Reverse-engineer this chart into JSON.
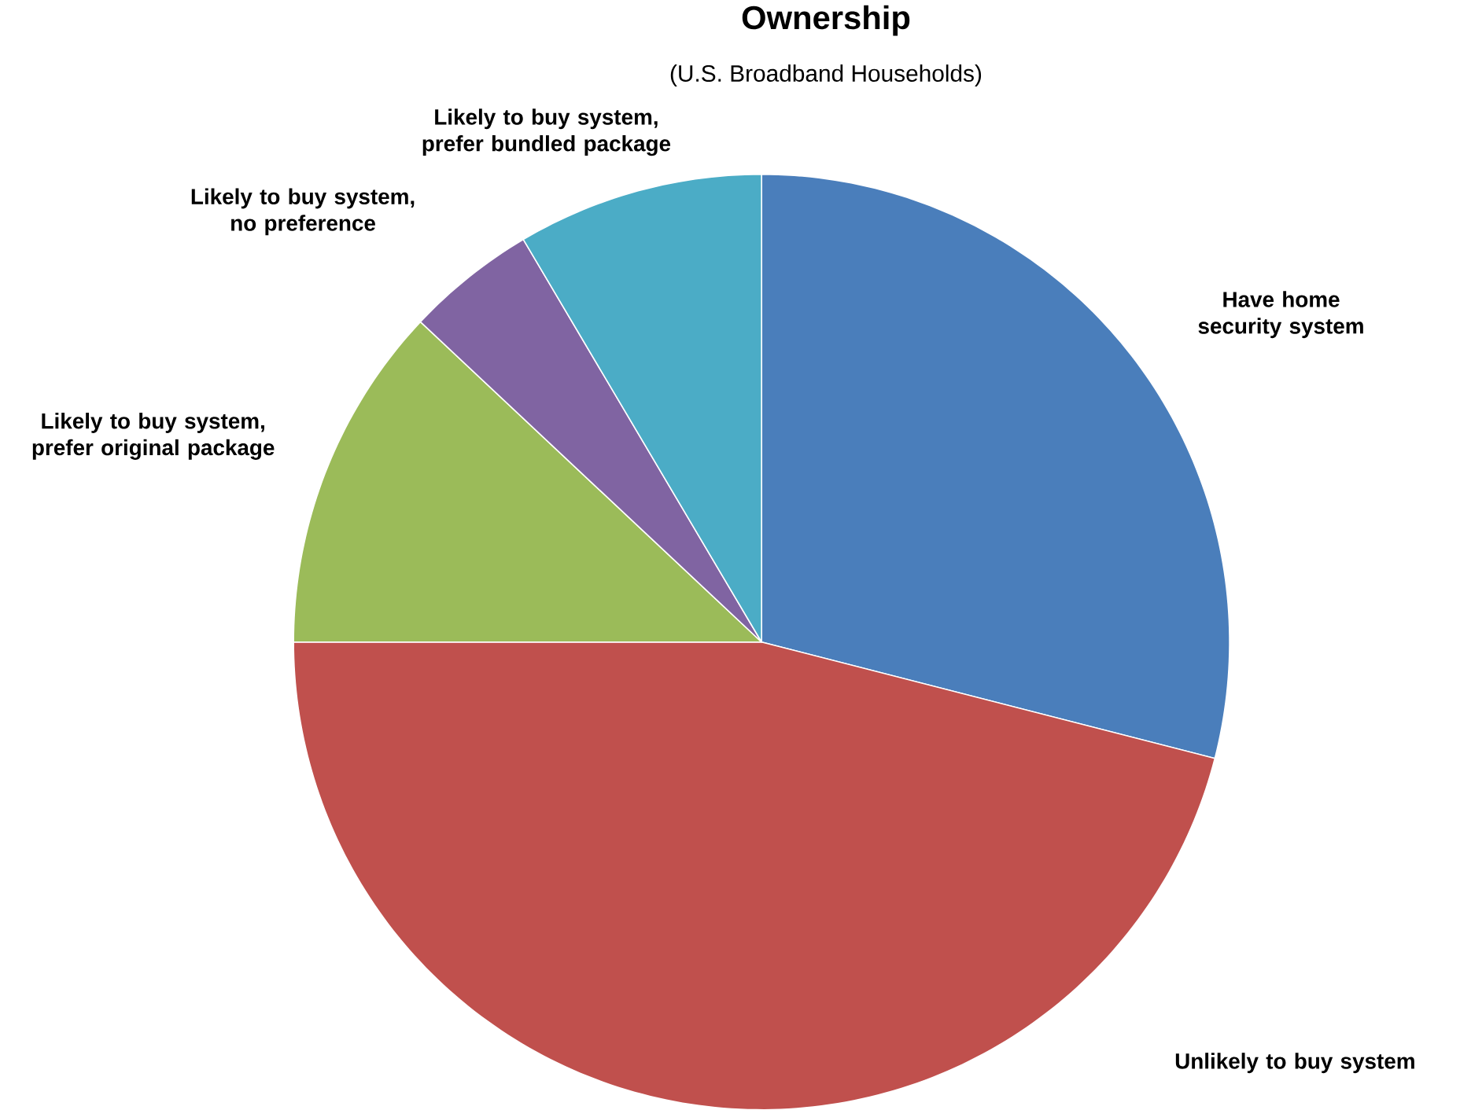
{
  "chart_data": {
    "type": "pie",
    "title": "Ownership",
    "subtitle": "(U.S.  Broadband Households)",
    "categories": [
      "Have home security system",
      "Unlikely to buy system",
      "Likely to buy system, prefer original package",
      "Likely to buy system, no preference",
      "Likely to buy system, prefer bundled package"
    ],
    "values": [
      29,
      46,
      12,
      4.5,
      8.5
    ],
    "colors": [
      "#4a7ebb",
      "#c0504d",
      "#9bbb59",
      "#8064a2",
      "#4bacc6"
    ],
    "legend": false
  }
}
